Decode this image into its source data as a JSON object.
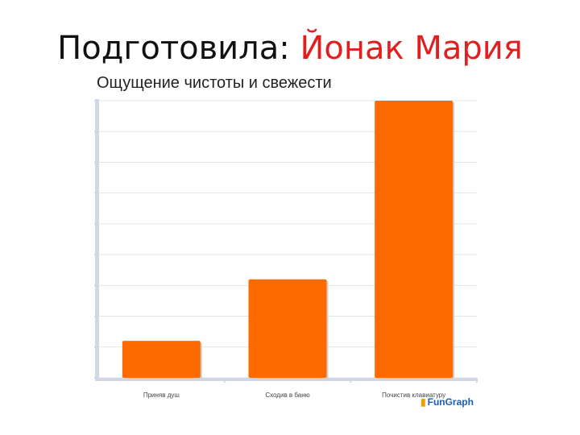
{
  "slide": {
    "title_prefix": "Подготовила: ",
    "title_author": "Йонак Мария"
  },
  "chart_data": {
    "type": "bar",
    "title": "Ощущение чистоты и свежести",
    "categories": [
      "Приняв душ",
      "Сходив в баню",
      "Почистив клавиатуру"
    ],
    "values": [
      12,
      32,
      90
    ],
    "ylim": [
      0,
      90
    ],
    "grid": true,
    "bar_color": "#ff6a00",
    "axis_color": "#cfd8e3",
    "grid_color": "#dfe6ee"
  },
  "watermark": {
    "text": "FunGraph",
    "logo_icon": "bar-chart-icon"
  }
}
